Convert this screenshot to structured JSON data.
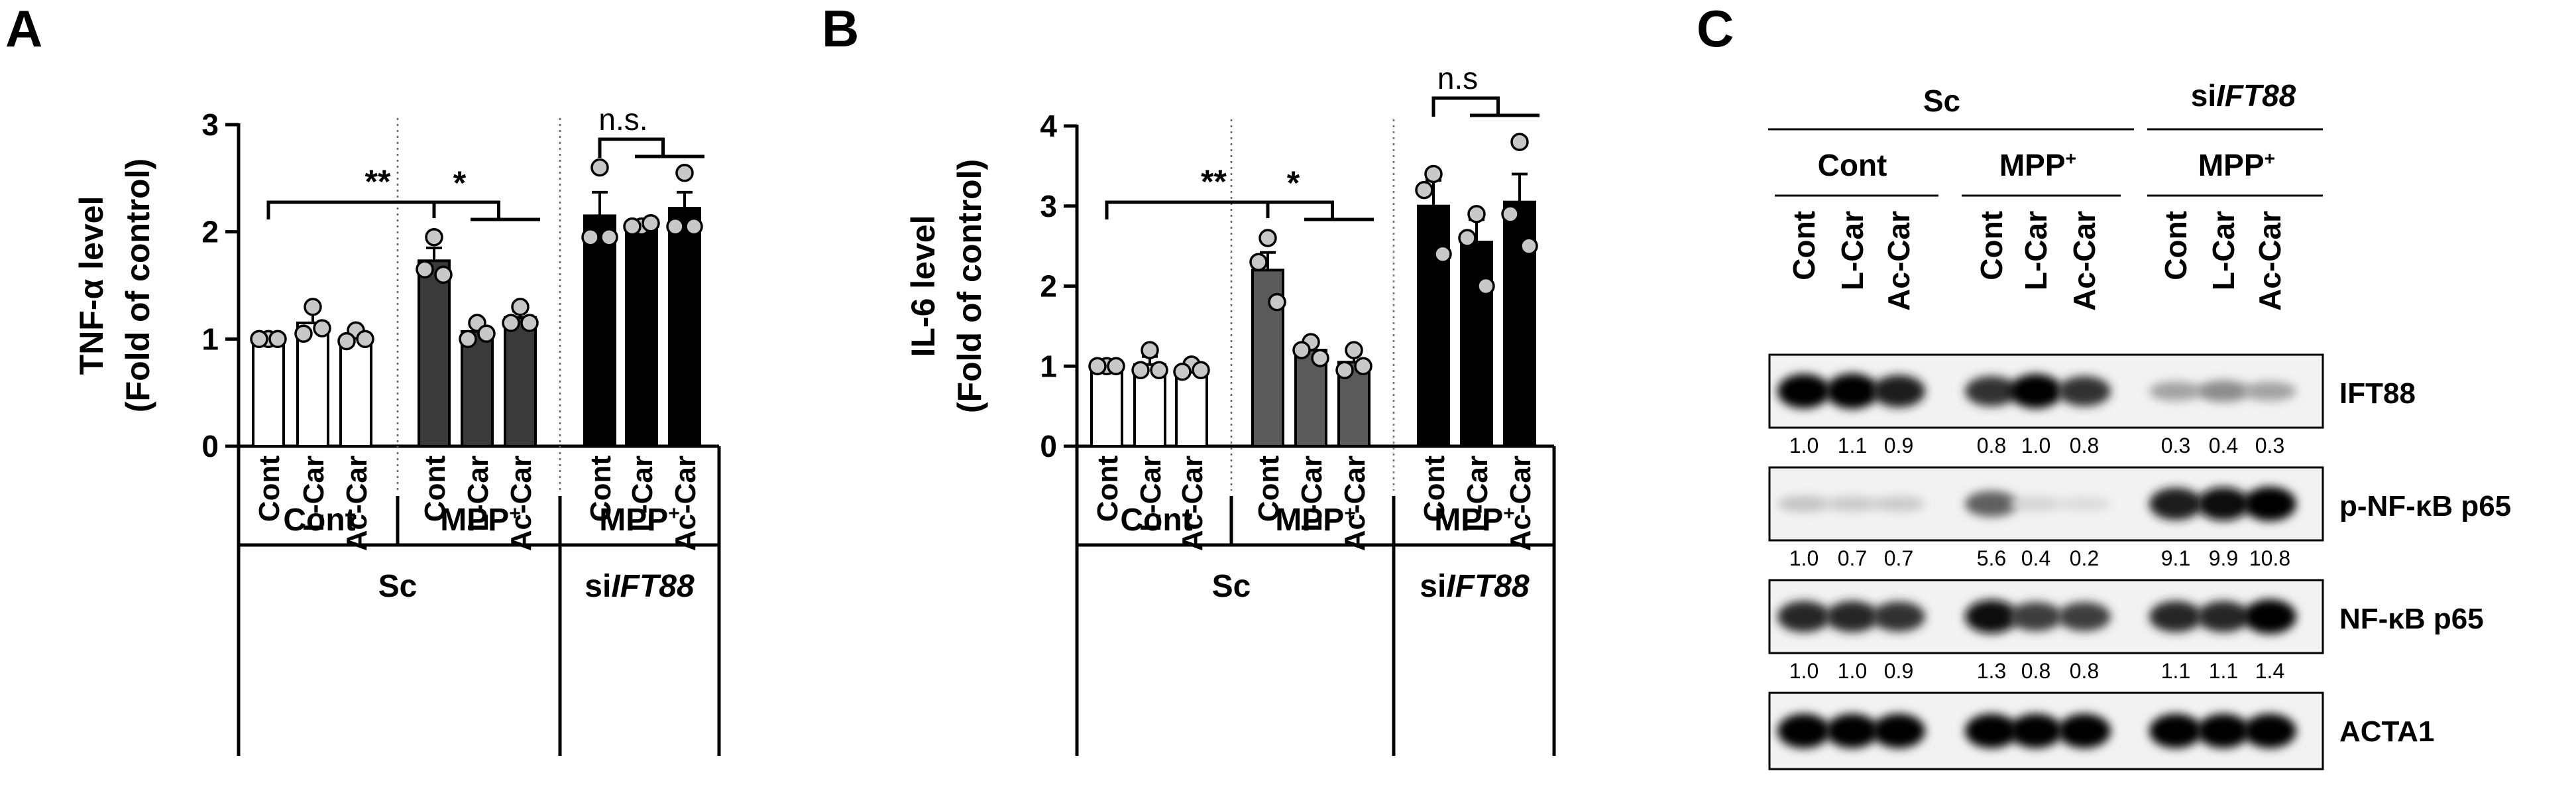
{
  "panels": {
    "A": {
      "letter": "A"
    },
    "B": {
      "letter": "B"
    },
    "C": {
      "letter": "C"
    }
  },
  "chart_data": [
    {
      "type": "bar",
      "panel": "A",
      "ylabel_line1": "TNF-α level",
      "ylabel_line2": "(Fold of control)",
      "ylim": [
        0,
        3
      ],
      "yticks": [
        "0",
        "1",
        "2",
        "3"
      ],
      "categories": [
        "Cont",
        "L-Car",
        "Ac-Car",
        "Cont",
        "L-Car",
        "Ac-Car",
        "Cont",
        "L-Car",
        "Ac-Car"
      ],
      "values": [
        1.0,
        1.15,
        1.02,
        1.73,
        1.07,
        1.2,
        2.15,
        2.05,
        2.22
      ],
      "errors": [
        0.02,
        0.14,
        0.05,
        0.12,
        0.07,
        0.06,
        0.22,
        0.05,
        0.15
      ],
      "points": [
        [
          1.0,
          1.0,
          1.0
        ],
        [
          1.3,
          1.05,
          1.1
        ],
        [
          1.08,
          0.98,
          1.0
        ],
        [
          1.95,
          1.65,
          1.6
        ],
        [
          1.15,
          1.0,
          1.05
        ],
        [
          1.3,
          1.15,
          1.15
        ],
        [
          2.6,
          1.95,
          1.95
        ],
        [
          2.05,
          2.05,
          2.08
        ],
        [
          2.55,
          2.05,
          2.05
        ]
      ],
      "bar_colors": [
        "#ffffff",
        "#ffffff",
        "#ffffff",
        "#3a3a3a",
        "#3a3a3a",
        "#3a3a3a",
        "#000000",
        "#000000",
        "#000000"
      ],
      "group_labels": [
        "Cont",
        "MPP+",
        "MPP+"
      ],
      "main_labels": [
        "Sc",
        "siIFT88"
      ],
      "annotations": [
        {
          "text": "**",
          "kind": "bracket_long"
        },
        {
          "text": "*",
          "kind": "bracket_short"
        },
        {
          "text": "n.s.",
          "kind": "bracket_top"
        }
      ]
    },
    {
      "type": "bar",
      "panel": "B",
      "ylabel_line1": "IL-6 level",
      "ylabel_line2": "(Fold of control)",
      "ylim": [
        0,
        4
      ],
      "yticks": [
        "0",
        "1",
        "2",
        "3",
        "4"
      ],
      "categories": [
        "Cont",
        "L-Car",
        "Ac-Car",
        "Cont",
        "L-Car",
        "Ac-Car",
        "Cont",
        "L-Car",
        "Ac-Car"
      ],
      "values": [
        1.0,
        1.02,
        0.97,
        2.2,
        1.2,
        1.05,
        3.0,
        2.55,
        3.05
      ],
      "errors": [
        0.02,
        0.1,
        0.05,
        0.22,
        0.12,
        0.1,
        0.32,
        0.28,
        0.35
      ],
      "points": [
        [
          1.0,
          1.0,
          1.0
        ],
        [
          1.2,
          0.95,
          0.95
        ],
        [
          1.02,
          0.93,
          0.95
        ],
        [
          2.6,
          2.3,
          1.8
        ],
        [
          1.3,
          1.2,
          1.1
        ],
        [
          1.2,
          0.95,
          1.0
        ],
        [
          3.4,
          3.2,
          2.4
        ],
        [
          2.9,
          2.6,
          2.0
        ],
        [
          3.8,
          2.9,
          2.5
        ]
      ],
      "bar_colors": [
        "#ffffff",
        "#ffffff",
        "#ffffff",
        "#5a5a5a",
        "#5a5a5a",
        "#5a5a5a",
        "#000000",
        "#000000",
        "#000000"
      ],
      "group_labels": [
        "Cont",
        "MPP+",
        "MPP+"
      ],
      "main_labels": [
        "Sc",
        "siIFT88"
      ],
      "annotations": [
        {
          "text": "**",
          "kind": "bracket_long"
        },
        {
          "text": "*",
          "kind": "bracket_short"
        },
        {
          "text": "n.s",
          "kind": "bracket_top"
        }
      ]
    }
  ],
  "blot": {
    "top_groups": [
      {
        "pre": "Sc",
        "italic": ""
      },
      {
        "pre": "si",
        "italic": "IFT88"
      }
    ],
    "sub_groups": [
      "Cont",
      "MPP+",
      "MPP+"
    ],
    "lanes": [
      "Cont",
      "L-Car",
      "Ac-Car",
      "Cont",
      "L-Car",
      "Ac-Car",
      "Cont",
      "L-Car",
      "Ac-Car"
    ],
    "rows": [
      {
        "name": "IFT88",
        "quant": [
          "1.0",
          "1.1",
          "0.9",
          "0.8",
          "1.0",
          "0.8",
          "0.3",
          "0.4",
          "0.3"
        ],
        "intensity": [
          1.0,
          1.05,
          0.9,
          0.8,
          1.0,
          0.8,
          0.3,
          0.4,
          0.3
        ]
      },
      {
        "name": "p-NF-κB p65",
        "quant": [
          "1.0",
          "0.7",
          "0.7",
          "5.6",
          "0.4",
          "0.2",
          "9.1",
          "9.9",
          "10.8"
        ],
        "intensity": [
          0.15,
          0.12,
          0.12,
          0.6,
          0.08,
          0.05,
          0.9,
          0.95,
          1.0
        ]
      },
      {
        "name": "NF-κB p65",
        "quant": [
          "1.0",
          "1.0",
          "0.9",
          "1.3",
          "0.8",
          "0.8",
          "1.1",
          "1.1",
          "1.4"
        ],
        "intensity": [
          0.85,
          0.85,
          0.8,
          0.95,
          0.75,
          0.75,
          0.85,
          0.85,
          1.0
        ]
      },
      {
        "name": "ACTA1",
        "quant": [],
        "intensity": [
          1.0,
          1.0,
          1.0,
          1.0,
          1.0,
          1.0,
          1.0,
          1.0,
          1.0
        ]
      }
    ]
  }
}
